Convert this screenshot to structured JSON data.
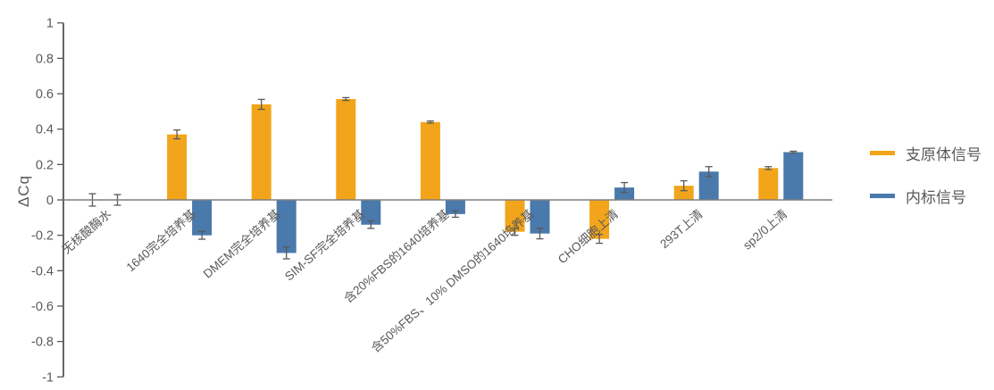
{
  "chart_data": {
    "type": "bar",
    "title": "",
    "xlabel": "",
    "ylabel": "ΔCq",
    "ylim": [
      -1,
      1
    ],
    "ytick_step": 0.2,
    "ytick_labels": [
      "1",
      "0.8",
      "0.6",
      "0.4",
      "0.2",
      "0",
      "-0.2",
      "-0.4",
      "-0.6",
      "-0.8",
      "-1"
    ],
    "grid": false,
    "legend_position": "right",
    "error_bars": true,
    "categories": [
      "无核酸酶水",
      "1640完全培养基",
      "DMEM完全培养基",
      "SIM-SF完全培养基",
      "含20%FBS的1640培养基",
      "含50%FBS、10% DMSO的1640培养基",
      "CHO细胞上清",
      "293T上清",
      "sp2/0上清"
    ],
    "series": [
      {
        "name": "支原体信号",
        "color": "#F2A51A",
        "values": [
          0,
          0.37,
          0.54,
          0.57,
          0.44,
          -0.18,
          -0.22,
          0.08,
          0.18
        ],
        "errors": [
          0.035,
          0.025,
          0.028,
          0.008,
          0.006,
          0.02,
          0.025,
          0.028,
          0.008
        ]
      },
      {
        "name": "内标信号",
        "color": "#4A79AC",
        "values": [
          0,
          -0.2,
          -0.3,
          -0.14,
          -0.08,
          -0.19,
          0.07,
          0.16,
          0.27
        ],
        "errors": [
          0.03,
          0.022,
          0.033,
          0.021,
          0.018,
          0.03,
          0.028,
          0.028,
          0.005
        ]
      }
    ],
    "colors": {
      "axis_line": "#404040",
      "zero_line": "#7F7F7F",
      "tick_mark": "#595959",
      "tick_text": "#595959",
      "category_text": "#595959",
      "error_bar": "#595959",
      "background": "#FFFFFF"
    }
  }
}
